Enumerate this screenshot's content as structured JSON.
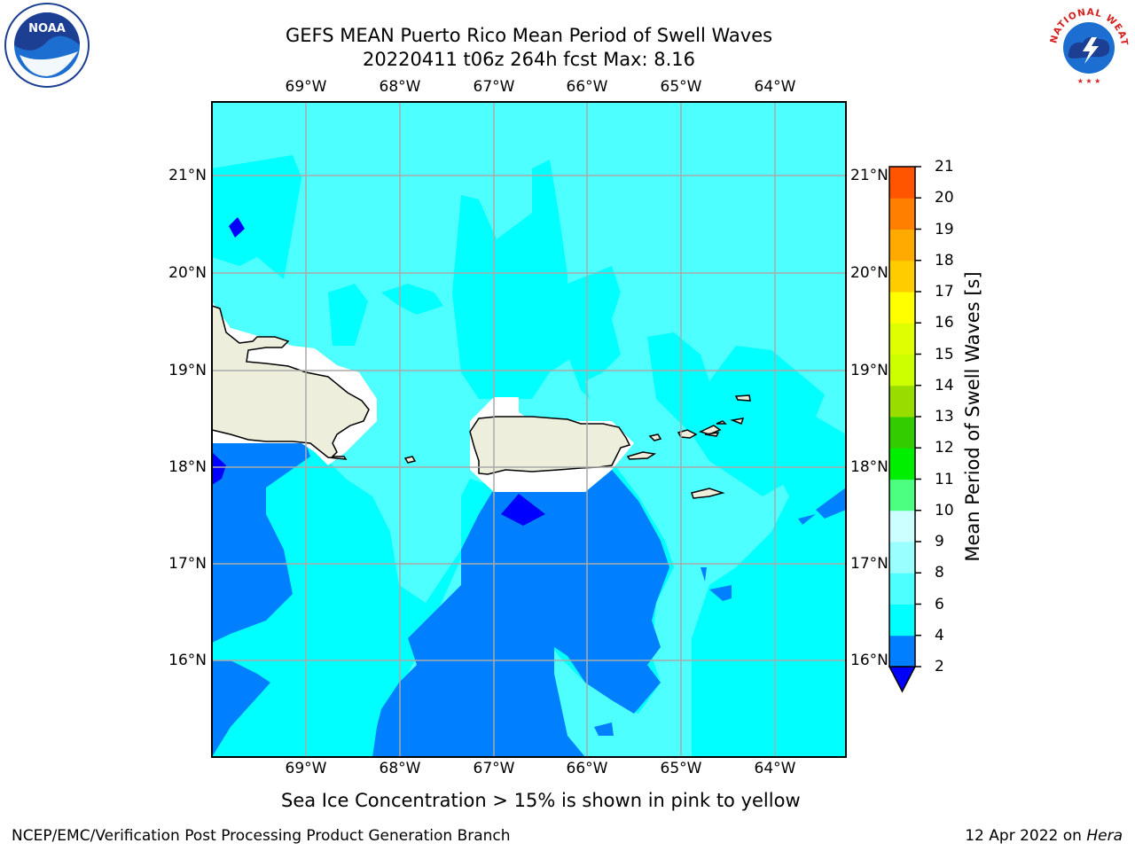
{
  "title": {
    "line1": "GEFS MEAN Puerto Rico Mean Period of Swell Waves",
    "line2": "20220411 t06z 264h fcst   Max: 8.16"
  },
  "map": {
    "lon_labels": [
      "69°W",
      "68°W",
      "67°W",
      "66°W",
      "65°W",
      "64°W"
    ],
    "lat_labels": [
      "21°N",
      "20°N",
      "19°N",
      "18°N",
      "17°N",
      "16°N"
    ],
    "land_color": "#eeeedc",
    "ocean_color": "#4dffff"
  },
  "colorbar": {
    "label": "Mean Period of Swell Waves [s]",
    "ticks": [
      "2",
      "4",
      "6",
      "8",
      "9",
      "10",
      "11",
      "12",
      "13",
      "14",
      "15",
      "16",
      "17",
      "18",
      "19",
      "20",
      "21"
    ],
    "colors": [
      "#0080ff",
      "#00ffff",
      "#4dffff",
      "#99ffff",
      "#ccffff",
      "#4dff80",
      "#00ee00",
      "#33cc00",
      "#99dd00",
      "#ccff00",
      "#ddff00",
      "#ffff00",
      "#ffcc00",
      "#ffaa00",
      "#ff8000",
      "#ff5500",
      "#ff2a00",
      "#ff0000"
    ],
    "extend_color": "#0000ff"
  },
  "subtitle": "Sea Ice Concentration > 15% is shown in pink to yellow",
  "footer": {
    "left": "NCEP/EMC/Verification Post Processing Product Generation Branch",
    "right_date": "12 Apr 2022 on ",
    "right_host": "Hera"
  },
  "logos": {
    "noaa": "NOAA",
    "nws": "NATIONAL WEATHER SERVICE"
  }
}
